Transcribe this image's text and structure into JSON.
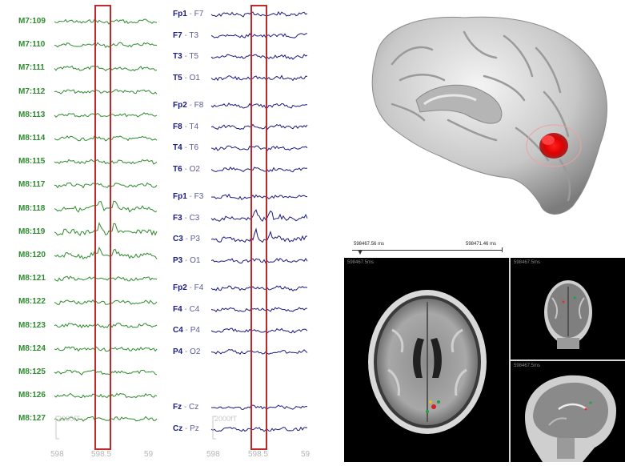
{
  "meg": {
    "channels": [
      "M7:109",
      "M7:110",
      "M7:111",
      "M7:112",
      "M8:113",
      "M8:114",
      "M8:115",
      "M8:117",
      "M8:118",
      "M8:119",
      "M8:120",
      "M8:121",
      "M8:122",
      "M8:123",
      "M8:124",
      "M8:125",
      "M8:126",
      "M8:127"
    ],
    "x_ticks": [
      "598",
      "598.5",
      "59"
    ],
    "scale_label": "2000fT",
    "color": "#2e8b2e"
  },
  "eeg": {
    "channels": [
      {
        "a": "Fp1",
        "b": "F7"
      },
      {
        "a": "F7",
        "b": "T3"
      },
      {
        "a": "T3",
        "b": "T5"
      },
      {
        "a": "T5",
        "b": "O1"
      },
      {
        "a": "Fp2",
        "b": "F8"
      },
      {
        "a": "F8",
        "b": "T4"
      },
      {
        "a": "T4",
        "b": "T6"
      },
      {
        "a": "T6",
        "b": "O2"
      },
      {
        "a": "Fp1",
        "b": "F3"
      },
      {
        "a": "F3",
        "b": "C3"
      },
      {
        "a": "C3",
        "b": "P3"
      },
      {
        "a": "P3",
        "b": "O1"
      },
      {
        "a": "Fp2",
        "b": "F4"
      },
      {
        "a": "F4",
        "b": "C4"
      },
      {
        "a": "C4",
        "b": "P4"
      },
      {
        "a": "P4",
        "b": "O2"
      },
      {
        "a": "Fz",
        "b": "Cz"
      },
      {
        "a": "Cz",
        "b": "Pz"
      }
    ],
    "separator": "-",
    "x_ticks": [
      "598",
      "598.5",
      "59"
    ],
    "scale_label": "2000fT",
    "color": "#1a1a80"
  },
  "highlight_color": "#c0282a",
  "timeline": {
    "start_label": "598467.56 ms",
    "end_label": "598471.46 ms"
  },
  "mri": {
    "axial_label": "598467.5ms",
    "coronal_label": "598467.5ms",
    "sagittal_label": "598467.5ms"
  }
}
